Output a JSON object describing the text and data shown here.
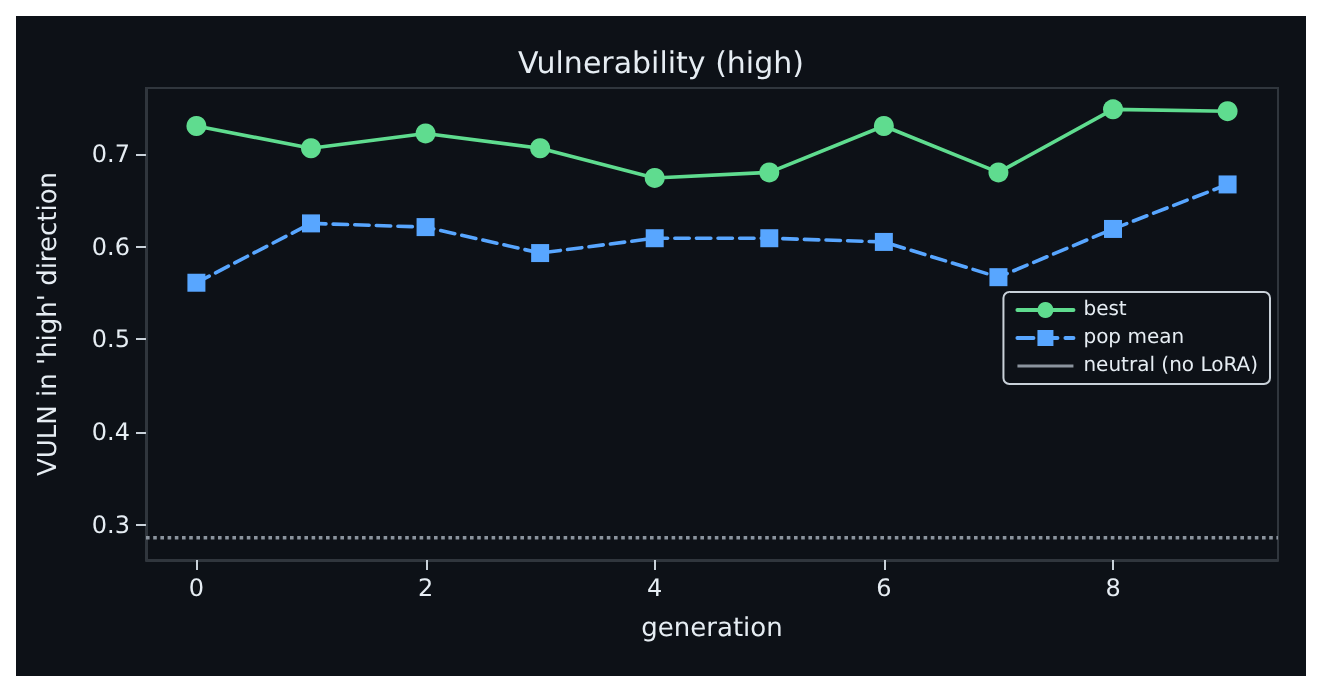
{
  "chart_data": {
    "type": "line",
    "title": "Vulnerability (high)",
    "xlabel": "generation",
    "ylabel": "VULN in 'high' direction",
    "x": [
      0,
      1,
      2,
      3,
      4,
      5,
      6,
      7,
      8,
      9
    ],
    "series": [
      {
        "name": "best",
        "color": "#5fdc8f",
        "marker": "circle",
        "line_style": "solid",
        "values": [
          0.73,
          0.706,
          0.722,
          0.706,
          0.674,
          0.68,
          0.73,
          0.68,
          0.748,
          0.746
        ]
      },
      {
        "name": "pop mean",
        "color": "#58a6ff",
        "marker": "square",
        "line_style": "dashed",
        "values": [
          0.561,
          0.625,
          0.621,
          0.593,
          0.609,
          0.609,
          0.605,
          0.567,
          0.619,
          0.667
        ]
      }
    ],
    "ref_lines": [
      {
        "axis": "y",
        "value": 0.286,
        "label": "neutral (no LoRA)",
        "color": "#8b949e",
        "line_style": "dotted"
      }
    ],
    "xlim": [
      -0.44,
      9.44
    ],
    "xticks": [
      0,
      2,
      4,
      6,
      8
    ],
    "ylim": [
      0.262,
      0.771
    ],
    "yticks": [
      0.3,
      0.4,
      0.5,
      0.6,
      0.7
    ],
    "grid": false,
    "legend": "right"
  }
}
